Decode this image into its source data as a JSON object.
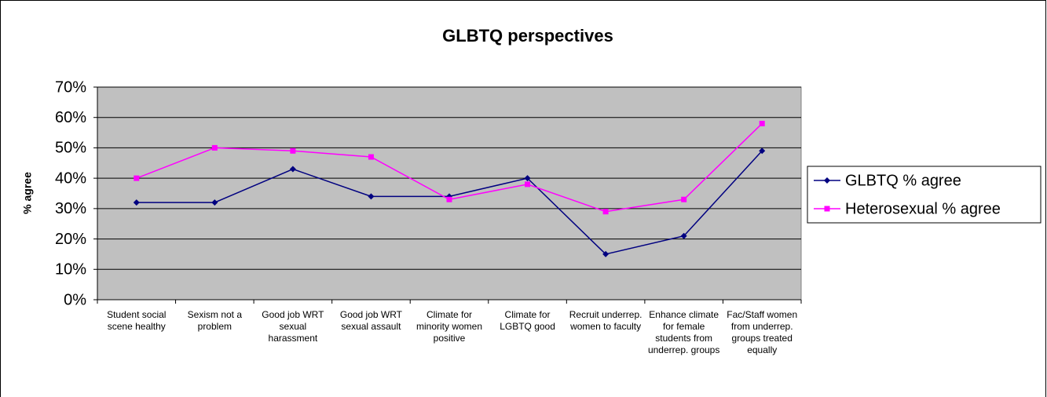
{
  "chart_data": {
    "type": "line",
    "title": "GLBTQ perspectives",
    "y_label": "% agree",
    "categories": [
      "Student social scene healthy",
      "Sexism not a problem",
      "Good job WRT sexual harassment",
      "Good job WRT sexual assault",
      "Climate for minority women positive",
      "Climate for LGBTQ good",
      "Recruit underrep. women to faculty",
      "Enhance climate for female students from underrep. groups",
      "Fac/Staff women from underrep. groups treated equally"
    ],
    "series": [
      {
        "name": "GLBTQ % agree",
        "color": "#000080",
        "marker": "diamond",
        "values": [
          32,
          32,
          43,
          34,
          34,
          40,
          15,
          21,
          49
        ]
      },
      {
        "name": "Heterosexual % agree",
        "color": "#FF00FF",
        "marker": "square",
        "values": [
          40,
          50,
          49,
          47,
          33,
          38,
          29,
          33,
          58
        ]
      }
    ],
    "ylim": [
      0,
      70
    ],
    "yticks": [
      {
        "value": 0,
        "label": "0%"
      },
      {
        "value": 10,
        "label": "10%"
      },
      {
        "value": 20,
        "label": "20%"
      },
      {
        "value": 30,
        "label": "30%"
      },
      {
        "value": 40,
        "label": "40%"
      },
      {
        "value": 50,
        "label": "50%"
      },
      {
        "value": 60,
        "label": "60%"
      },
      {
        "value": 70,
        "label": "70%"
      }
    ],
    "grid": true,
    "legend": "right",
    "plot_background": "#C0C0C0"
  }
}
